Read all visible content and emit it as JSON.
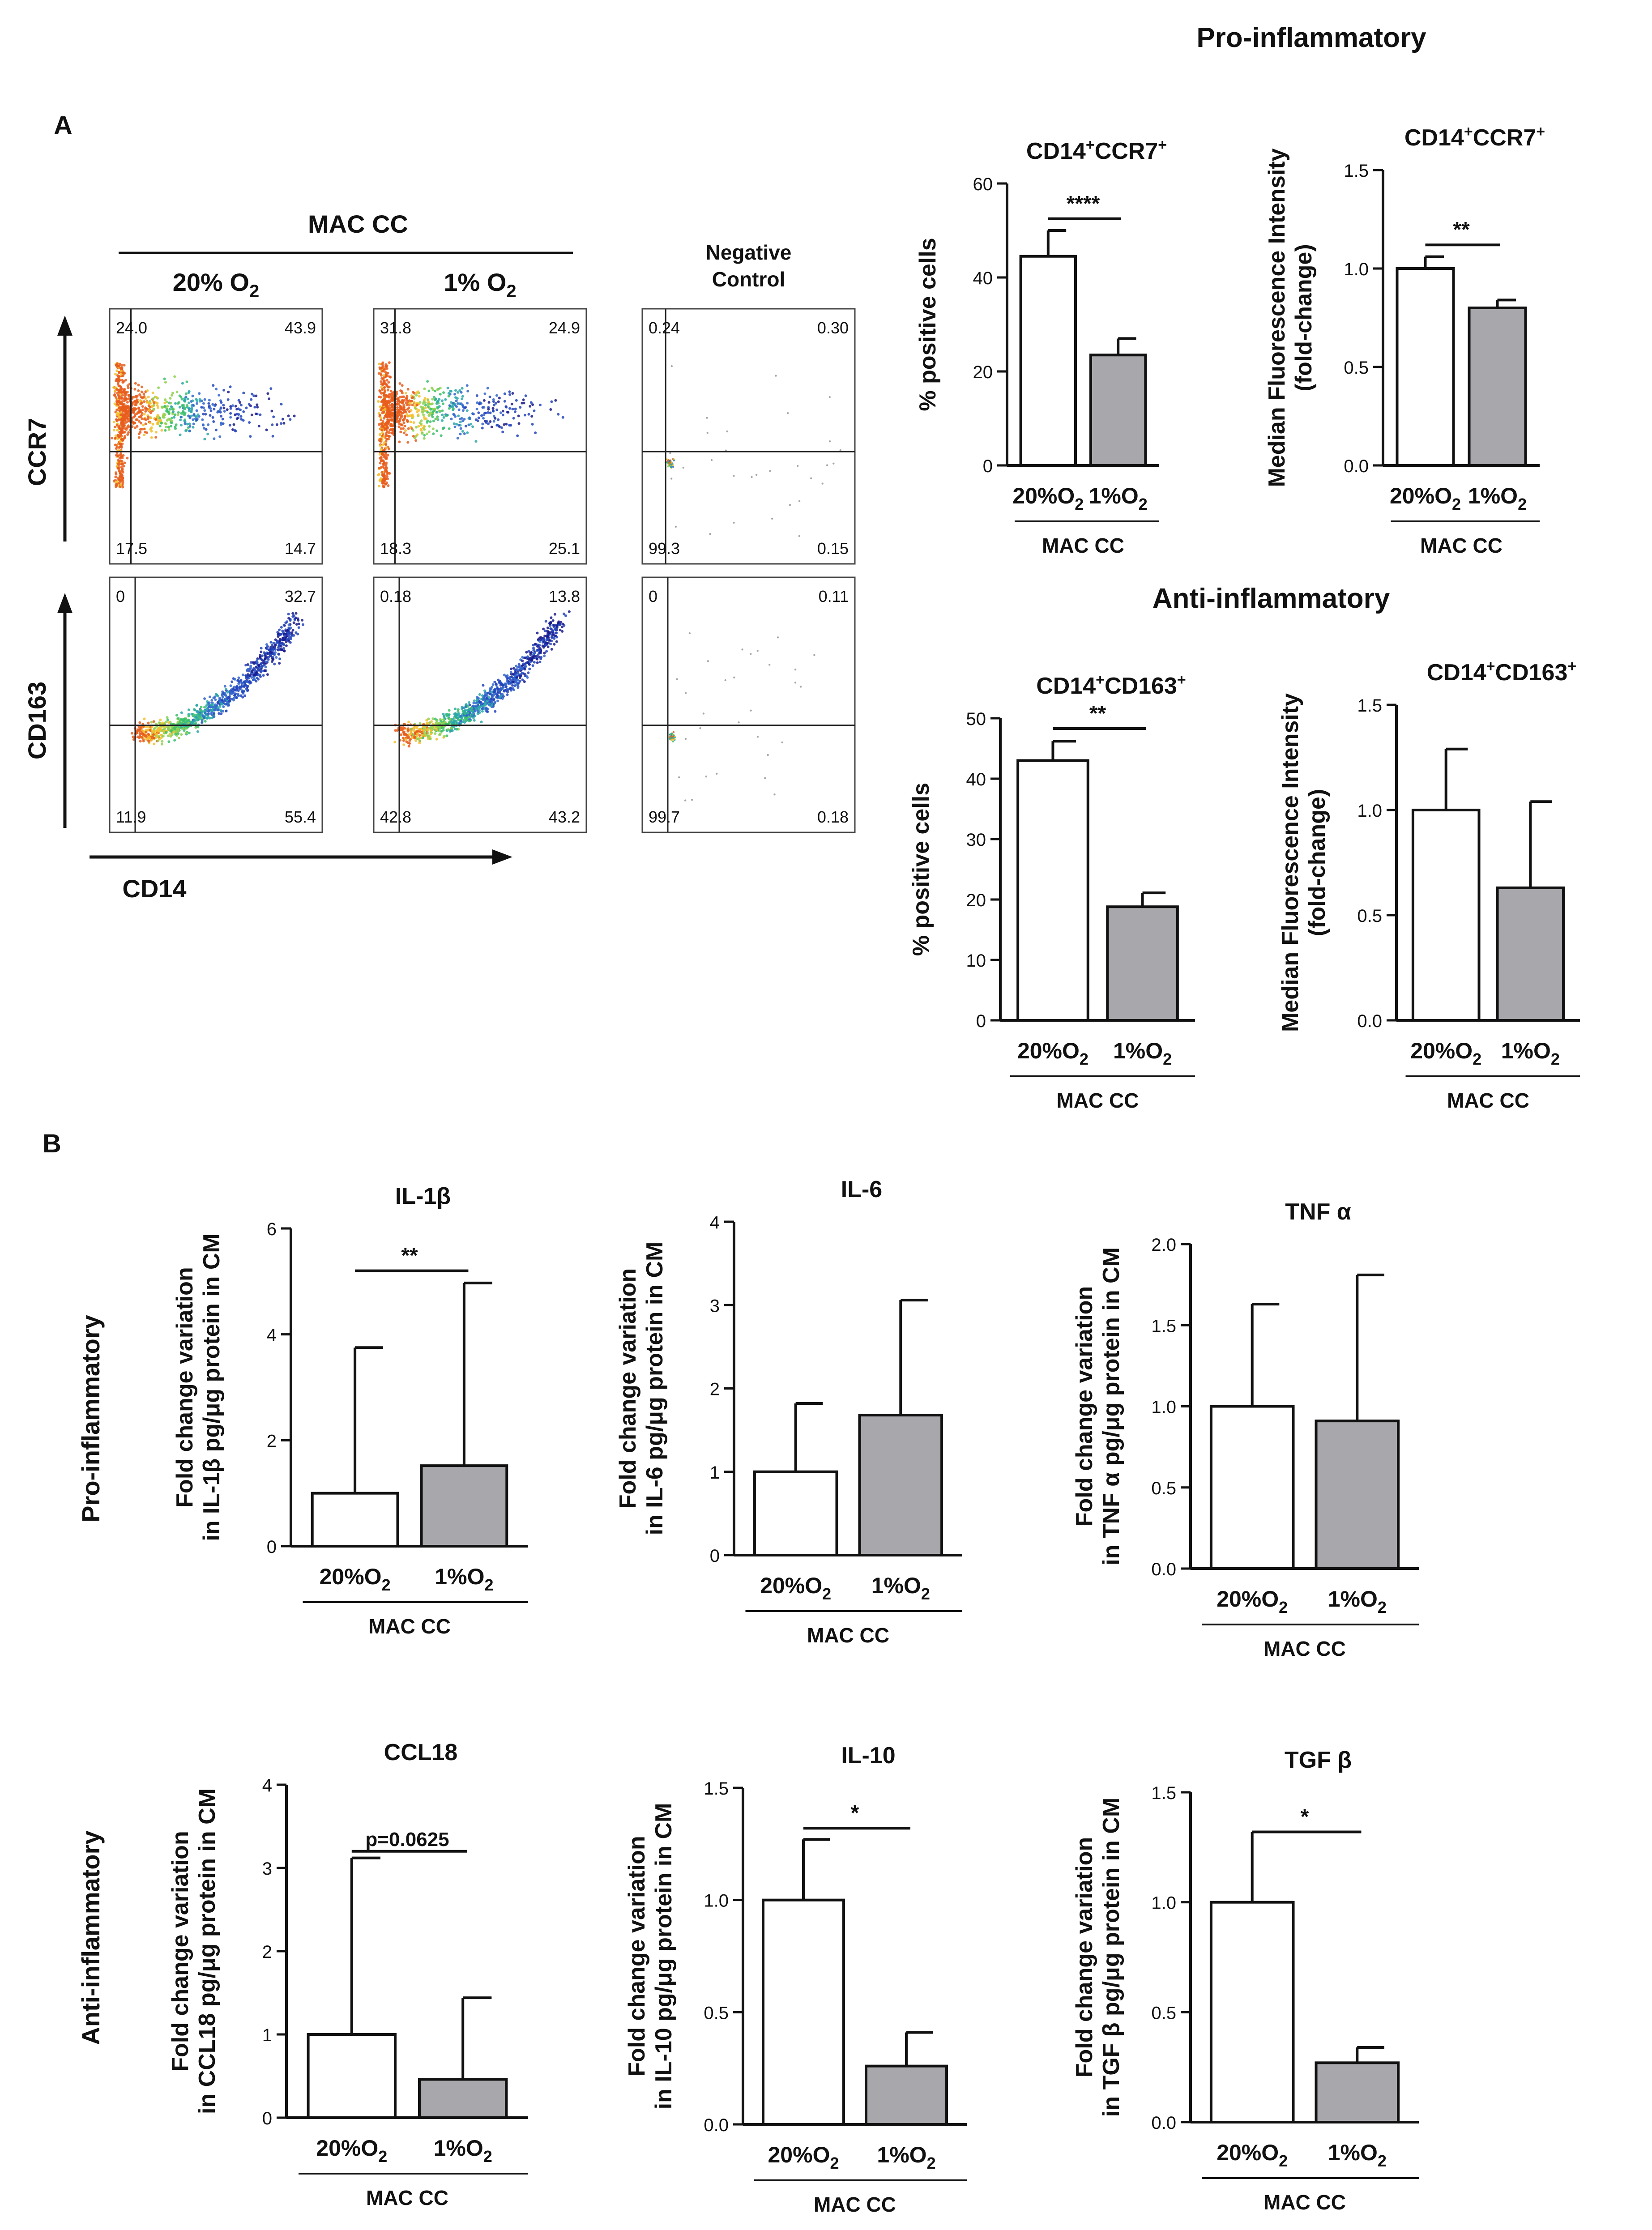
{
  "colors": {
    "bar_normoxia": "#ffffff",
    "bar_hypoxia": "#a8a8ac",
    "axis": "#111111",
    "facs_gate": "#222222"
  },
  "panel_a": {
    "label": "A",
    "pro_title": "Pro-inflammatory",
    "anti_title": "Anti-inflammatory",
    "facs": {
      "group_label": "MAC CC",
      "columns": [
        "20% O2",
        "1% O2",
        "Negative Control"
      ],
      "col_main": [
        "20% O",
        "1% O",
        "Negative"
      ],
      "col_sub": [
        "2",
        "2",
        ""
      ],
      "col_extra": [
        "",
        "",
        "Control"
      ],
      "y_labels": [
        "CCR7",
        "CD163"
      ],
      "x_label": "CD14",
      "quadrants": [
        [
          [
            "24.0",
            "43.9",
            "17.5",
            "14.7"
          ],
          [
            "31.8",
            "24.9",
            "18.3",
            "25.1"
          ],
          [
            "0.24",
            "0.30",
            "99.3",
            "0.15"
          ]
        ],
        [
          [
            "0",
            "32.7",
            "11.9",
            "55.4"
          ],
          [
            "0.18",
            "13.8",
            "42.8",
            "43.2"
          ],
          [
            "0",
            "0.11",
            "99.7",
            "0.18"
          ]
        ]
      ]
    }
  },
  "panel_b": {
    "label": "B",
    "row_labels": [
      "Pro-inflammatory",
      "Anti-inflammatory"
    ]
  },
  "chart_data": [
    {
      "type": "bar",
      "title": "CD14+CCR7+",
      "title_parts": [
        "CD14",
        "+",
        "CCR7",
        "+"
      ],
      "categories": [
        "20%O2",
        "1%O2"
      ],
      "group_label": "MAC CC",
      "values": [
        44.5,
        23.5
      ],
      "errors": [
        5.5,
        3.5
      ],
      "ylabel": [
        "% positive cells"
      ],
      "ylim": [
        0,
        60
      ],
      "yticks": [
        "0",
        "20",
        "40",
        "60"
      ],
      "significance": "****",
      "sig_y": 52.5
    },
    {
      "type": "bar",
      "title": "CD14+CCR7+",
      "title_parts": [
        "CD14",
        "+",
        "CCR7",
        "+"
      ],
      "categories": [
        "20%O2",
        "1%O2"
      ],
      "group_label": "MAC CC",
      "values": [
        1.0,
        0.8
      ],
      "errors": [
        0.06,
        0.04
      ],
      "ylabel": [
        "Median Fluorescence Intensity",
        "(fold-change)"
      ],
      "ylim": [
        0,
        1.5
      ],
      "yticks": [
        "0.0",
        "0.5",
        "1.0",
        "1.5"
      ],
      "significance": "**",
      "sig_y": 1.12
    },
    {
      "type": "bar",
      "title": "CD14+CD163+",
      "title_parts": [
        "CD14",
        "+",
        "CD163",
        "+"
      ],
      "categories": [
        "20%O2",
        "1%O2"
      ],
      "group_label": "MAC CC",
      "values": [
        43.0,
        18.8
      ],
      "errors": [
        3.2,
        2.3
      ],
      "ylabel": [
        "% positive cells"
      ],
      "ylim": [
        0,
        50
      ],
      "yticks": [
        "0",
        "10",
        "20",
        "30",
        "40",
        "50"
      ],
      "significance": "**",
      "sig_y": 48.3
    },
    {
      "type": "bar",
      "title": "CD14+CD163+",
      "title_parts": [
        "CD14",
        "+",
        "CD163",
        "+"
      ],
      "categories": [
        "20%O2",
        "1%O2"
      ],
      "group_label": "MAC CC",
      "values": [
        1.0,
        0.63
      ],
      "errors": [
        0.29,
        0.41
      ],
      "ylabel": [
        "Median Fluorescence Intensity",
        "(fold-change)"
      ],
      "ylim": [
        0,
        1.5
      ],
      "yticks": [
        "0.0",
        "0.5",
        "1.0",
        "1.5"
      ],
      "significance": "",
      "sig_y": 0
    },
    {
      "type": "bar",
      "title": "IL-1β",
      "title_parts": [
        "IL-1β",
        "",
        "",
        ""
      ],
      "categories": [
        "20%O2",
        "1%O2"
      ],
      "group_label": "MAC CC",
      "values": [
        1.0,
        1.52
      ],
      "errors": [
        2.75,
        3.45
      ],
      "ylabel": [
        "Fold change variation",
        "in IL-1β pg/μg protein in CM"
      ],
      "ylim": [
        0,
        6
      ],
      "yticks": [
        "0",
        "2",
        "4",
        "6"
      ],
      "significance": "**",
      "sig_y": 5.2
    },
    {
      "type": "bar",
      "title": "IL-6",
      "title_parts": [
        "IL-6",
        "",
        "",
        ""
      ],
      "categories": [
        "20%O2",
        "1%O2"
      ],
      "group_label": "MAC CC",
      "values": [
        1.0,
        1.68
      ],
      "errors": [
        0.82,
        1.38
      ],
      "ylabel": [
        "Fold change variation",
        "in IL-6 pg/μg protein in CM"
      ],
      "ylim": [
        0,
        4
      ],
      "yticks": [
        "0",
        "1",
        "2",
        "3",
        "4"
      ],
      "significance": "",
      "sig_y": 0
    },
    {
      "type": "bar",
      "title": "TNF α",
      "title_parts": [
        "TNF α",
        "",
        "",
        ""
      ],
      "categories": [
        "20%O2",
        "1%O2"
      ],
      "group_label": "MAC CC",
      "values": [
        1.0,
        0.91
      ],
      "errors": [
        0.63,
        0.9
      ],
      "ylabel": [
        "Fold change variation",
        "in TNF α pg/μg protein in CM"
      ],
      "ylim": [
        0,
        2.0
      ],
      "yticks": [
        "0.0",
        "0.5",
        "1.0",
        "1.5",
        "2.0"
      ],
      "significance": "",
      "sig_y": 0
    },
    {
      "type": "bar",
      "title": "CCL18",
      "title_parts": [
        "CCL18",
        "",
        "",
        ""
      ],
      "categories": [
        "20%O2",
        "1%O2"
      ],
      "group_label": "MAC CC",
      "values": [
        1.0,
        0.46
      ],
      "errors": [
        2.12,
        0.98
      ],
      "ylabel": [
        "Fold change variation",
        "in CCL18 pg/μg protein in CM"
      ],
      "ylim": [
        0,
        4
      ],
      "yticks": [
        "0",
        "1",
        "2",
        "3",
        "4"
      ],
      "significance": "p=0.0625",
      "sig_y": 3.2
    },
    {
      "type": "bar",
      "title": "IL-10",
      "title_parts": [
        "IL-10",
        "",
        "",
        ""
      ],
      "categories": [
        "20%O2",
        "1%O2"
      ],
      "group_label": "MAC CC",
      "values": [
        1.0,
        0.26
      ],
      "errors": [
        0.27,
        0.15
      ],
      "ylabel": [
        "Fold change variation",
        "in IL-10 pg/μg protein in CM"
      ],
      "ylim": [
        0,
        1.5
      ],
      "yticks": [
        "0.0",
        "0.5",
        "1.0",
        "1.5"
      ],
      "significance": "*",
      "sig_y": 1.32
    },
    {
      "type": "bar",
      "title": "TGF β",
      "title_parts": [
        "TGF β",
        "",
        "",
        ""
      ],
      "categories": [
        "20%O2",
        "1%O2"
      ],
      "group_label": "MAC CC",
      "values": [
        1.0,
        0.27
      ],
      "errors": [
        0.32,
        0.07
      ],
      "ylabel": [
        "Fold change variation",
        "in TGF β pg/μg protein in CM"
      ],
      "ylim": [
        0,
        1.5
      ],
      "yticks": [
        "0.0",
        "0.5",
        "1.0",
        "1.5"
      ],
      "significance": "*",
      "sig_y": 1.32
    }
  ]
}
